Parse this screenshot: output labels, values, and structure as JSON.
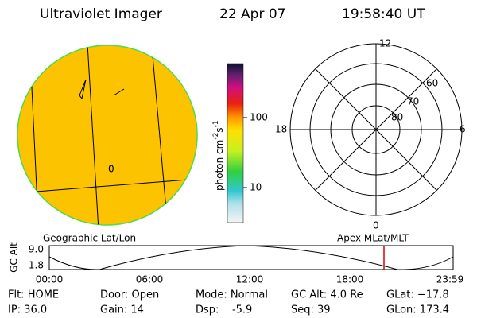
{
  "header": {
    "title": "Ultraviolet Imager",
    "date": "22 Apr 07",
    "time": "19:58:40 UT"
  },
  "colorbar": {
    "label": "photon cm",
    "exp1": "-2",
    "unit2": "s",
    "exp2": "-1",
    "ticks": [
      "100",
      "10"
    ]
  },
  "polar": {
    "labels": {
      "top": "12",
      "left": "18",
      "right": "6",
      "bottom": "0"
    },
    "rings": [
      "60",
      "70",
      "80"
    ]
  },
  "image_labels": {
    "left": "Geographic Lat/Lon",
    "right": "Apex MLat/MLT"
  },
  "altitude": {
    "axis_label": "GC Alt",
    "ticks": [
      "9.0",
      "1.8"
    ],
    "time_ticks": [
      "00:00",
      "06:00",
      "12:00",
      "18:00",
      "23:59"
    ]
  },
  "footer": {
    "rows": [
      [
        "Flt: HOME",
        "Door: Open",
        "Mode: Normal",
        "GC Alt: 4.0 Re",
        "GLat: −17.8"
      ],
      [
        "IP: 36.0",
        "Gain: 14",
        "Dsp:    -5.9",
        "Seq: 39",
        "GLon: 173.4"
      ]
    ]
  }
}
